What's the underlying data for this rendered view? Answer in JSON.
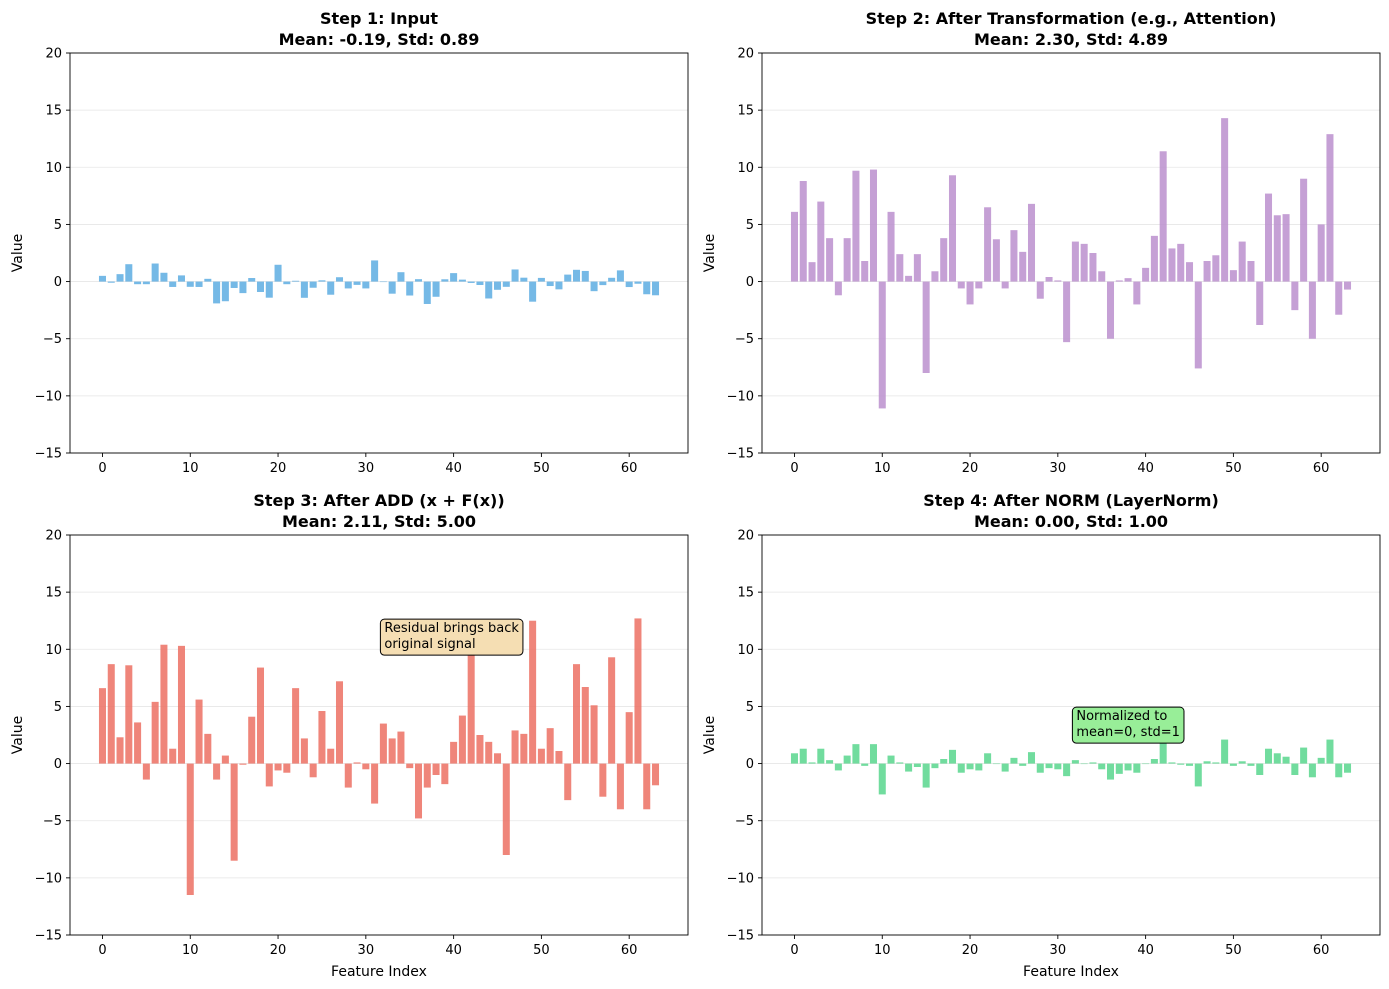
{
  "figure": {
    "xlabel": "Feature Index",
    "ylabel": "Value"
  },
  "chart_data": [
    {
      "type": "bar",
      "title": "Step 1: Input",
      "subtitle": "Mean: -0.19, Std: 0.89",
      "xlabel": "",
      "ylabel": "Value",
      "xlim": [
        -3.7,
        66.7
      ],
      "ylim": [
        -15,
        20
      ],
      "xticks": [
        0,
        10,
        20,
        30,
        40,
        50,
        60
      ],
      "yticks": [
        -15,
        -10,
        -5,
        0,
        5,
        10,
        15,
        20
      ],
      "grid": "y",
      "color": "#5DADE2",
      "x": [
        0,
        1,
        2,
        3,
        4,
        5,
        6,
        7,
        8,
        9,
        10,
        11,
        12,
        13,
        14,
        15,
        16,
        17,
        18,
        19,
        20,
        21,
        22,
        23,
        24,
        25,
        26,
        27,
        28,
        29,
        30,
        31,
        32,
        33,
        34,
        35,
        36,
        37,
        38,
        39,
        40,
        41,
        42,
        43,
        44,
        45,
        46,
        47,
        48,
        49,
        50,
        51,
        52,
        53,
        54,
        55,
        56,
        57,
        58,
        59,
        60,
        61,
        62,
        63
      ],
      "values": [
        0.5,
        -0.1,
        0.65,
        1.52,
        -0.23,
        -0.23,
        1.58,
        0.77,
        -0.47,
        0.54,
        -0.46,
        -0.47,
        0.24,
        -1.91,
        -1.72,
        -0.56,
        -1.01,
        0.31,
        -0.91,
        -1.41,
        1.47,
        -0.23,
        0.07,
        -1.42,
        -0.54,
        0.11,
        -1.15,
        0.38,
        -0.6,
        -0.29,
        -0.6,
        1.85,
        -0.01,
        -1.06,
        0.82,
        -1.22,
        0.21,
        -1.96,
        -1.33,
        0.2,
        0.74,
        0.17,
        -0.12,
        -0.3,
        -1.48,
        -0.72,
        -0.46,
        1.06,
        0.34,
        -1.76,
        0.32,
        -0.39,
        -0.68,
        0.61,
        1.03,
        0.93,
        -0.84,
        -0.31,
        0.33,
        0.98,
        -0.48,
        -0.19,
        -1.11,
        -1.2
      ]
    },
    {
      "type": "bar",
      "title": "Step 2: After Transformation (e.g., Attention)",
      "subtitle": "Mean: 2.30, Std: 4.89",
      "xlabel": "",
      "ylabel": "Value",
      "xlim": [
        -3.7,
        66.7
      ],
      "ylim": [
        -15,
        20
      ],
      "xticks": [
        0,
        10,
        20,
        30,
        40,
        50,
        60
      ],
      "yticks": [
        -15,
        -10,
        -5,
        0,
        5,
        10,
        15,
        20
      ],
      "grid": "y",
      "color": "#BB8FCE",
      "x": [
        0,
        1,
        2,
        3,
        4,
        5,
        6,
        7,
        8,
        9,
        10,
        11,
        12,
        13,
        14,
        15,
        16,
        17,
        18,
        19,
        20,
        21,
        22,
        23,
        24,
        25,
        26,
        27,
        28,
        29,
        30,
        31,
        32,
        33,
        34,
        35,
        36,
        37,
        38,
        39,
        40,
        41,
        42,
        43,
        44,
        45,
        46,
        47,
        48,
        49,
        50,
        51,
        52,
        53,
        54,
        55,
        56,
        57,
        58,
        59,
        60,
        61,
        62,
        63
      ],
      "values": [
        6.1,
        8.8,
        1.7,
        7.0,
        3.8,
        -1.2,
        3.8,
        9.7,
        1.8,
        9.8,
        -11.1,
        6.1,
        2.4,
        0.5,
        2.4,
        -8.0,
        0.9,
        3.8,
        9.3,
        -0.6,
        -2.0,
        -0.6,
        6.5,
        3.7,
        -0.6,
        4.5,
        2.6,
        6.8,
        -1.5,
        0.4,
        0.1,
        -5.3,
        3.5,
        3.3,
        2.5,
        0.9,
        -5.0,
        0.1,
        0.3,
        -2.0,
        1.2,
        4.0,
        11.4,
        2.9,
        3.3,
        1.7,
        -7.6,
        1.8,
        2.3,
        14.3,
        1.0,
        3.5,
        1.8,
        -3.8,
        7.7,
        5.8,
        5.9,
        -2.5,
        9.0,
        -5.0,
        5.0,
        12.9,
        -2.9,
        -0.7
      ]
    },
    {
      "type": "bar",
      "title": "Step 3: After ADD (x + F(x))",
      "subtitle": "Mean: 2.11, Std: 5.00",
      "xlabel": "Feature Index",
      "ylabel": "Value",
      "xlim": [
        -3.7,
        66.7
      ],
      "ylim": [
        -15,
        20
      ],
      "xticks": [
        0,
        10,
        20,
        30,
        40,
        50,
        60
      ],
      "yticks": [
        -15,
        -10,
        -5,
        0,
        5,
        10,
        15,
        20
      ],
      "grid": "y",
      "color": "#EC7063",
      "annotation": {
        "text_lines": [
          "Residual brings back",
          "original signal"
        ],
        "x": 32,
        "y": 11.5,
        "bg": "#F5DEB3"
      },
      "x": [
        0,
        1,
        2,
        3,
        4,
        5,
        6,
        7,
        8,
        9,
        10,
        11,
        12,
        13,
        14,
        15,
        16,
        17,
        18,
        19,
        20,
        21,
        22,
        23,
        24,
        25,
        26,
        27,
        28,
        29,
        30,
        31,
        32,
        33,
        34,
        35,
        36,
        37,
        38,
        39,
        40,
        41,
        42,
        43,
        44,
        45,
        46,
        47,
        48,
        49,
        50,
        51,
        52,
        53,
        54,
        55,
        56,
        57,
        58,
        59,
        60,
        61,
        62,
        63
      ],
      "values": [
        6.6,
        8.7,
        2.3,
        8.6,
        3.6,
        -1.4,
        5.4,
        10.4,
        1.3,
        10.3,
        -11.5,
        5.6,
        2.6,
        -1.4,
        0.7,
        -8.5,
        -0.1,
        4.1,
        8.4,
        -2.0,
        -0.6,
        -0.8,
        6.6,
        2.2,
        -1.2,
        4.6,
        1.3,
        7.2,
        -2.1,
        0.1,
        -0.5,
        -3.5,
        3.5,
        2.2,
        2.8,
        -0.4,
        -4.8,
        -2.1,
        -1.0,
        -1.8,
        1.9,
        4.2,
        11.3,
        2.5,
        1.9,
        0.9,
        -8.0,
        2.9,
        2.6,
        12.5,
        1.3,
        3.1,
        1.1,
        -3.2,
        8.7,
        6.7,
        5.1,
        -2.9,
        9.3,
        -4.0,
        4.5,
        12.7,
        -4.0,
        -1.9
      ]
    },
    {
      "type": "bar",
      "title": "Step 4: After NORM (LayerNorm)",
      "subtitle": "Mean: 0.00, Std: 1.00",
      "xlabel": "Feature Index",
      "ylabel": "Value",
      "xlim": [
        -3.7,
        66.7
      ],
      "ylim": [
        -15,
        20
      ],
      "xticks": [
        0,
        10,
        20,
        30,
        40,
        50,
        60
      ],
      "yticks": [
        -15,
        -10,
        -5,
        0,
        5,
        10,
        15,
        20
      ],
      "grid": "y",
      "color": "#58D68D",
      "annotation": {
        "text_lines": [
          "Normalized to",
          "mean=0, std=1"
        ],
        "x": 32,
        "y": 3.8,
        "bg": "#98EE98"
      },
      "x": [
        0,
        1,
        2,
        3,
        4,
        5,
        6,
        7,
        8,
        9,
        10,
        11,
        12,
        13,
        14,
        15,
        16,
        17,
        18,
        19,
        20,
        21,
        22,
        23,
        24,
        25,
        26,
        27,
        28,
        29,
        30,
        31,
        32,
        33,
        34,
        35,
        36,
        37,
        38,
        39,
        40,
        41,
        42,
        43,
        44,
        45,
        46,
        47,
        48,
        49,
        50,
        51,
        52,
        53,
        54,
        55,
        56,
        57,
        58,
        59,
        60,
        61,
        62,
        63
      ],
      "values": [
        0.9,
        1.3,
        0.1,
        1.3,
        0.3,
        -0.6,
        0.7,
        1.7,
        -0.2,
        1.7,
        -2.7,
        0.7,
        0.1,
        -0.7,
        -0.3,
        -2.1,
        -0.4,
        0.4,
        1.2,
        -0.8,
        -0.5,
        -0.6,
        0.9,
        0.0,
        -0.7,
        0.5,
        -0.2,
        1.0,
        -0.8,
        -0.4,
        -0.5,
        -1.1,
        0.3,
        0.0,
        0.1,
        -0.5,
        -1.4,
        -0.9,
        -0.6,
        -0.8,
        0.0,
        0.4,
        1.8,
        0.1,
        -0.1,
        -0.2,
        -2.0,
        0.2,
        0.1,
        2.1,
        -0.2,
        0.2,
        -0.2,
        -1.0,
        1.3,
        0.9,
        0.6,
        -1.0,
        1.4,
        -1.2,
        0.5,
        2.1,
        -1.2,
        -0.8
      ]
    }
  ]
}
